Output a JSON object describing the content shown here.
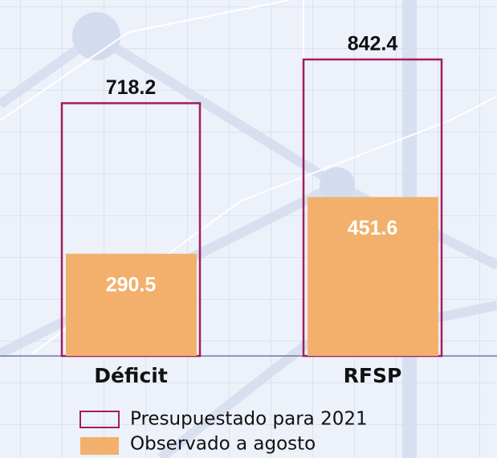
{
  "chart_data": {
    "type": "bar",
    "categories": [
      "Déficit",
      "RFSP"
    ],
    "series": [
      {
        "name": "Presupuestado para 2021",
        "color": "#a21d5e",
        "values": [
          718.2,
          842.4
        ]
      },
      {
        "name": "Observado a agosto",
        "color": "#f2b06c",
        "values": [
          290.5,
          451.6
        ]
      }
    ]
  }
}
